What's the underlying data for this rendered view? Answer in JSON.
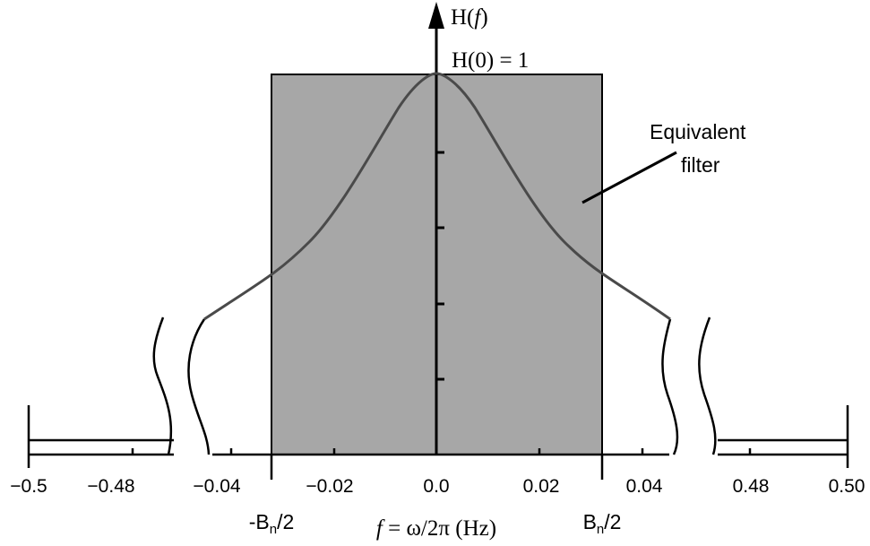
{
  "figure": {
    "y_axis_label_prefix": "H(",
    "y_axis_label_var": "f",
    "y_axis_label_suffix": ")",
    "peak_label": "H(0) = 1",
    "equivalent_filter_line1": "Equivalent",
    "equivalent_filter_line2": "filter",
    "neg_bandwidth_label": "-B",
    "neg_bandwidth_sub": "n",
    "neg_bandwidth_suffix": "/2",
    "pos_bandwidth_label": "B",
    "pos_bandwidth_sub": "n",
    "pos_bandwidth_suffix": "/2",
    "x_axis_title_var": "f",
    "x_axis_title_rest": " = ω/2π (Hz)",
    "tick_labels": [
      "−0.5",
      "−0.48",
      "−0.04",
      "−0.02",
      "0.0",
      "0.02",
      "0.04",
      "0.48",
      "0.50"
    ],
    "colors": {
      "equivalent_filter_fill": "#a7a7a7",
      "response_curve": "#4a4a4a",
      "axis": "#000000"
    }
  }
}
